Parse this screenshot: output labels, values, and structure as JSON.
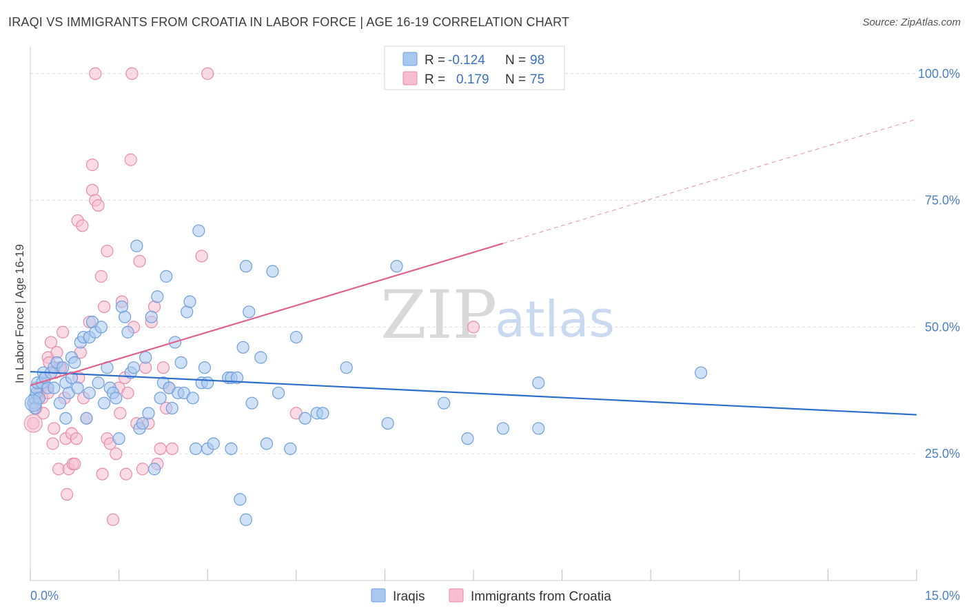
{
  "title": "IRAQI VS IMMIGRANTS FROM CROATIA IN LABOR FORCE | AGE 16-19 CORRELATION CHART",
  "source": "Source: ZipAtlas.com",
  "watermark": {
    "zip": "ZIP",
    "atlas": "atlas"
  },
  "legend_box": {
    "rows": [
      {
        "r_label": "R =",
        "r_value": "-0.124",
        "n_label": "N =",
        "n_value": "98"
      },
      {
        "r_label": "R =",
        "r_value": "0.179",
        "n_label": "N =",
        "n_value": "75"
      }
    ]
  },
  "colors": {
    "iraqis_fill": "#a9c8f0",
    "iraqis_stroke": "#6e9fdc",
    "iraqis_line": "#2e6fcc",
    "croatia_fill": "#f6bdd0",
    "croatia_stroke": "#e98cab",
    "croatia_line": "#e0608e",
    "tick_label": "#4a7fc8",
    "grid": "#dddddd"
  },
  "chart_data": {
    "type": "scatter",
    "title": "IRAQI VS IMMIGRANTS FROM CROATIA IN LABOR FORCE | AGE 16-19 CORRELATION CHART",
    "xlabel": "",
    "ylabel": "In Labor Force | Age 16-19",
    "xlim": [
      0,
      15
    ],
    "ylim": [
      0,
      105
    ],
    "x_tick_labels": [
      "0.0%",
      "15.0%"
    ],
    "y_ticks": [
      25,
      50,
      75,
      100
    ],
    "y_tick_labels": [
      "25.0%",
      "50.0%",
      "75.0%",
      "100.0%"
    ],
    "grid": true,
    "legend_position": "top-center",
    "series": [
      {
        "name": "Iraqis",
        "trend": {
          "x0": 0,
          "y0": 41.2,
          "x1": 15,
          "y1": 32.7
        },
        "points": [
          [
            0.05,
            35
          ],
          [
            0.07,
            36
          ],
          [
            0.08,
            34
          ],
          [
            0.1,
            37
          ],
          [
            0.1,
            38
          ],
          [
            0.12,
            39
          ],
          [
            0.15,
            36
          ],
          [
            0.2,
            39
          ],
          [
            0.22,
            41
          ],
          [
            0.25,
            40
          ],
          [
            0.3,
            38
          ],
          [
            0.35,
            41
          ],
          [
            0.4,
            42
          ],
          [
            0.4,
            38
          ],
          [
            0.45,
            43
          ],
          [
            0.5,
            35
          ],
          [
            0.55,
            42
          ],
          [
            0.6,
            39
          ],
          [
            0.6,
            32
          ],
          [
            0.65,
            37
          ],
          [
            0.7,
            44
          ],
          [
            0.7,
            40
          ],
          [
            0.75,
            43
          ],
          [
            0.8,
            38
          ],
          [
            0.85,
            47
          ],
          [
            0.9,
            48
          ],
          [
            0.95,
            32
          ],
          [
            1.0,
            48
          ],
          [
            1.0,
            37
          ],
          [
            1.05,
            51
          ],
          [
            1.1,
            49
          ],
          [
            1.15,
            39
          ],
          [
            1.2,
            50
          ],
          [
            1.25,
            35
          ],
          [
            1.3,
            42
          ],
          [
            1.35,
            38
          ],
          [
            1.4,
            37
          ],
          [
            1.45,
            36
          ],
          [
            1.5,
            28
          ],
          [
            1.55,
            54
          ],
          [
            1.6,
            52
          ],
          [
            1.65,
            49
          ],
          [
            1.7,
            41
          ],
          [
            1.75,
            42
          ],
          [
            1.8,
            66
          ],
          [
            1.85,
            30
          ],
          [
            1.9,
            31
          ],
          [
            1.95,
            44
          ],
          [
            2.0,
            33
          ],
          [
            2.05,
            52
          ],
          [
            2.1,
            22
          ],
          [
            2.15,
            56
          ],
          [
            2.2,
            36
          ],
          [
            2.25,
            39
          ],
          [
            2.3,
            60
          ],
          [
            2.35,
            38
          ],
          [
            2.4,
            34
          ],
          [
            2.45,
            47
          ],
          [
            2.5,
            37
          ],
          [
            2.55,
            43
          ],
          [
            2.6,
            37
          ],
          [
            2.65,
            53
          ],
          [
            2.7,
            55
          ],
          [
            2.75,
            36
          ],
          [
            2.8,
            26
          ],
          [
            2.85,
            69
          ],
          [
            2.9,
            39
          ],
          [
            2.95,
            42
          ],
          [
            3.0,
            26
          ],
          [
            3.1,
            27
          ],
          [
            3.0,
            39
          ],
          [
            3.35,
            40
          ],
          [
            3.4,
            40
          ],
          [
            3.5,
            40
          ],
          [
            3.4,
            26
          ],
          [
            3.55,
            16
          ],
          [
            3.6,
            46
          ],
          [
            3.65,
            12
          ],
          [
            3.65,
            62
          ],
          [
            3.7,
            53
          ],
          [
            3.75,
            35
          ],
          [
            3.9,
            44
          ],
          [
            4.0,
            27
          ],
          [
            4.1,
            61
          ],
          [
            4.2,
            37
          ],
          [
            4.4,
            26
          ],
          [
            4.5,
            48
          ],
          [
            4.65,
            32
          ],
          [
            4.85,
            33
          ],
          [
            4.95,
            33
          ],
          [
            5.35,
            42
          ],
          [
            6.05,
            31
          ],
          [
            6.2,
            62
          ],
          [
            7.0,
            35
          ],
          [
            7.4,
            28
          ],
          [
            8.0,
            30
          ],
          [
            8.6,
            39
          ],
          [
            8.6,
            30
          ],
          [
            11.35,
            41
          ]
        ]
      },
      {
        "name": "Immigrants from Croatia",
        "trend": {
          "x0": 0,
          "y0": 38.5,
          "x1": 8.0,
          "y1": 66.5
        },
        "trend_dashed": {
          "x0": 8.0,
          "y0": 66.5,
          "x1": 15,
          "y1": 91.0
        },
        "points": [
          [
            0.05,
            31
          ],
          [
            0.08,
            35
          ],
          [
            0.1,
            34
          ],
          [
            0.12,
            36
          ],
          [
            0.15,
            37
          ],
          [
            0.18,
            38
          ],
          [
            0.2,
            36
          ],
          [
            0.22,
            33
          ],
          [
            0.25,
            40
          ],
          [
            0.28,
            38
          ],
          [
            0.3,
            37
          ],
          [
            0.3,
            44
          ],
          [
            0.32,
            43
          ],
          [
            0.35,
            47
          ],
          [
            0.38,
            27
          ],
          [
            0.4,
            30
          ],
          [
            0.42,
            41
          ],
          [
            0.45,
            45
          ],
          [
            0.48,
            22
          ],
          [
            0.5,
            42
          ],
          [
            0.52,
            42
          ],
          [
            0.55,
            49
          ],
          [
            0.58,
            36
          ],
          [
            0.6,
            28
          ],
          [
            0.62,
            17
          ],
          [
            0.65,
            22
          ],
          [
            0.7,
            29
          ],
          [
            0.72,
            23
          ],
          [
            0.75,
            23
          ],
          [
            0.78,
            28
          ],
          [
            0.8,
            71
          ],
          [
            0.82,
            40
          ],
          [
            0.85,
            45
          ],
          [
            0.88,
            70
          ],
          [
            0.9,
            36
          ],
          [
            0.95,
            32
          ],
          [
            1.0,
            51
          ],
          [
            1.05,
            77
          ],
          [
            1.05,
            82
          ],
          [
            1.1,
            75
          ],
          [
            1.15,
            74
          ],
          [
            1.2,
            60
          ],
          [
            1.22,
            21
          ],
          [
            1.25,
            54
          ],
          [
            1.3,
            65
          ],
          [
            1.3,
            28
          ],
          [
            1.35,
            27
          ],
          [
            1.4,
            12
          ],
          [
            1.45,
            25
          ],
          [
            1.5,
            38
          ],
          [
            1.52,
            33
          ],
          [
            1.55,
            55
          ],
          [
            1.6,
            40
          ],
          [
            1.62,
            21
          ],
          [
            1.65,
            37
          ],
          [
            1.7,
            83
          ],
          [
            1.75,
            50
          ],
          [
            1.8,
            31
          ],
          [
            1.85,
            63
          ],
          [
            1.9,
            22
          ],
          [
            1.95,
            42
          ],
          [
            2.0,
            31
          ],
          [
            2.05,
            51
          ],
          [
            2.1,
            54
          ],
          [
            2.15,
            23
          ],
          [
            2.2,
            26
          ],
          [
            2.25,
            42
          ],
          [
            2.3,
            34
          ],
          [
            2.35,
            38
          ],
          [
            2.4,
            26
          ],
          [
            1.1,
            100
          ],
          [
            1.72,
            100
          ],
          [
            3.0,
            100
          ],
          [
            2.9,
            64
          ],
          [
            4.5,
            33
          ],
          [
            7.5,
            50
          ]
        ]
      }
    ]
  },
  "bottom_legend": [
    {
      "label": "Iraqis"
    },
    {
      "label": "Immigrants from Croatia"
    }
  ]
}
